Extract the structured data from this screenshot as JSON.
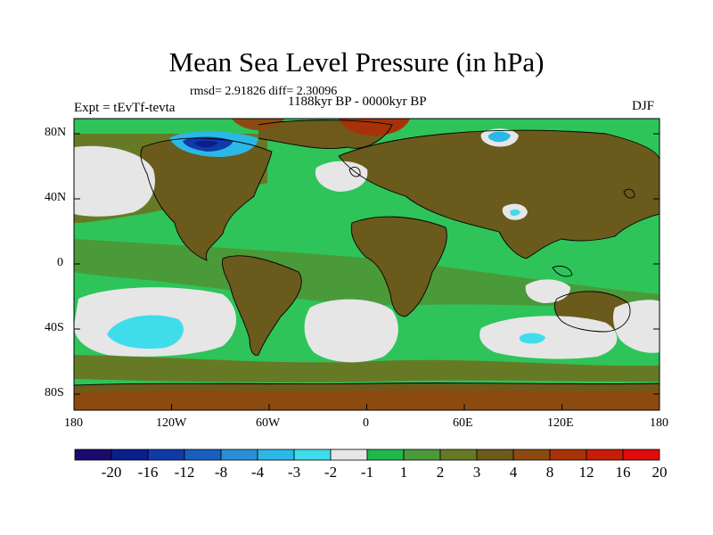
{
  "title": "Mean Sea Level Pressure (in hPa)",
  "stats": "rmsd= 2.91826  diff= 2.30096",
  "period": "1188kyr BP - 0000kyr BP",
  "experiment": "Expt = tEvTf-tevta",
  "season": "DJF",
  "axes": {
    "lat_ticks": [
      "80N",
      "40N",
      "0",
      "40S",
      "80S"
    ],
    "lon_ticks": [
      "180",
      "120W",
      "60W",
      "0",
      "60E",
      "120E",
      "180"
    ]
  },
  "colorbar": {
    "labels": [
      "-20",
      "-16",
      "-12",
      "-8",
      "-4",
      "-3",
      "-2",
      "-1",
      "1",
      "2",
      "3",
      "4",
      "8",
      "12",
      "16",
      "20"
    ],
    "colors": [
      "#1a0a6e",
      "#0a1f8c",
      "#0f3aa8",
      "#1a5fc0",
      "#2a8fd6",
      "#2cb8e6",
      "#3fdcec",
      "#e6e6e6",
      "#1fb84a",
      "#4a9a3a",
      "#667a25",
      "#6e5a1a",
      "#8c4a10",
      "#a83208",
      "#c81c04",
      "#e00c0c"
    ]
  },
  "colors": {
    "ocean_base": "#2ec45a",
    "land_base": "#6a5a1c",
    "neutral": "#e6e6e6",
    "negative_light": "#3fdcec",
    "negative_dark": "#0a1f8c",
    "positive_strong": "#a83208",
    "coastline": "#000000"
  }
}
